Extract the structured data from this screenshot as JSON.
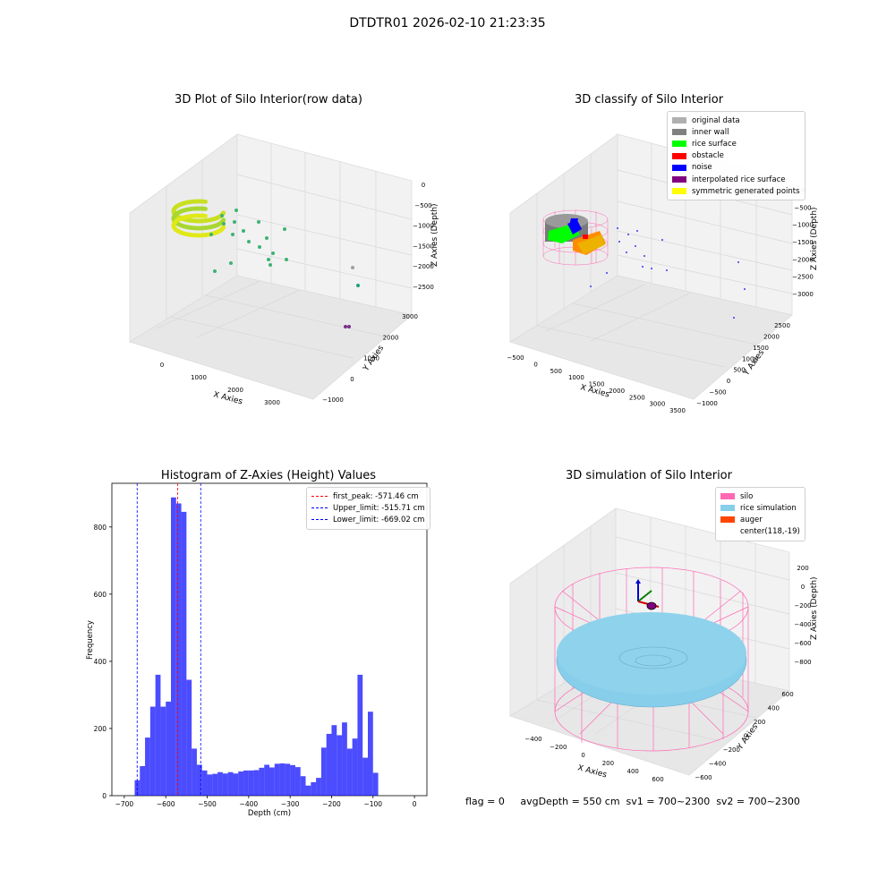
{
  "suptitle": "DTDTR01 2026-02-10 21:23:35",
  "panels": {
    "raw": {
      "title": "3D Plot of Silo Interior(row data)",
      "xlabel": "X Axies",
      "ylabel": "Y Axies",
      "zlabel": "Z Axies (Depth)",
      "xticks": [
        "0",
        "1000",
        "2000",
        "3000"
      ],
      "yticks": [
        "-1000",
        "0",
        "1000",
        "2000",
        "3000"
      ],
      "zticks": [
        "0",
        "-500",
        "-1000",
        "-1500",
        "-2000",
        "-2500"
      ]
    },
    "classify": {
      "title": "3D classify of Silo Interior",
      "xlabel": "X Axies",
      "ylabel": "Y Axies",
      "zlabel": "Z Axies (Depth)",
      "xticks": [
        "-500",
        "0",
        "500",
        "1000",
        "1500",
        "2000",
        "2500",
        "3000",
        "3500"
      ],
      "yticks": [
        "-1000",
        "-500",
        "0",
        "500",
        "1000",
        "1500",
        "2000",
        "2500"
      ],
      "zticks": [
        "0",
        "-500",
        "-1000",
        "-1500",
        "-2000",
        "-2500",
        "-3000"
      ],
      "legend": [
        {
          "label": "original data",
          "color": "#b0b0b0"
        },
        {
          "label": "inner wall",
          "color": "#808080"
        },
        {
          "label": "rice surface",
          "color": "#00ff00"
        },
        {
          "label": "obstacle",
          "color": "#ff0000"
        },
        {
          "label": "noise",
          "color": "#0000ff"
        },
        {
          "label": "interpolated rice surface",
          "color": "#800080"
        },
        {
          "label": "symmetric generated points",
          "color": "#ffff00"
        }
      ]
    },
    "simulation": {
      "title": "3D simulation of Silo Interior",
      "xlabel": "X Axies",
      "ylabel": "Y Axies",
      "zlabel": "Z Axies (Depth)",
      "xticks": [
        "-400",
        "-200",
        "0",
        "200",
        "400",
        "600"
      ],
      "yticks": [
        "-600",
        "-400",
        "-200",
        "0",
        "200",
        "400",
        "600"
      ],
      "zticks": [
        "200",
        "0",
        "-200",
        "-400",
        "-600",
        "-800"
      ],
      "legend": [
        {
          "label": "silo",
          "color": "#ff69b4"
        },
        {
          "label": "rice simulation",
          "color": "#87ceeb"
        },
        {
          "label": "auger",
          "color": "#ff4500"
        },
        {
          "label": "center(118,-19)",
          "color": ""
        }
      ]
    }
  },
  "footer": "flag = 0     avgDepth = 550 cm  sv1 = 700~2300  sv2 = 700~2300",
  "chart_data": {
    "type": "bar",
    "title": "Histogram of Z-Axies (Height) Values",
    "xlabel": "Depth (cm)",
    "ylabel": "Frequency",
    "xlim": [
      -730,
      30
    ],
    "ylim": [
      0,
      930
    ],
    "xticks": [
      -700,
      -600,
      -500,
      -400,
      -300,
      -200,
      -100,
      0
    ],
    "yticks": [
      0,
      200,
      400,
      600,
      800
    ],
    "bin_start": -675,
    "bin_width": 12.5,
    "color": "#0000ff",
    "values": [
      46,
      88,
      173,
      265,
      360,
      265,
      280,
      888,
      870,
      845,
      345,
      140,
      92,
      75,
      63,
      65,
      70,
      66,
      70,
      66,
      72,
      75,
      75,
      76,
      83,
      92,
      84,
      95,
      96,
      95,
      91,
      85,
      58,
      30,
      40,
      53,
      143,
      184,
      210,
      180,
      218,
      140,
      170,
      360,
      113,
      250,
      68
    ],
    "lines": [
      {
        "label": "first_peak: -571.46 cm",
        "x": -571.46,
        "color": "#ff0000"
      },
      {
        "label": "Upper_limit: -515.71 cm",
        "x": -515.71,
        "color": "#0000ff"
      },
      {
        "label": "Lower_limit: -669.02 cm",
        "x": -669.02,
        "color": "#0000ff"
      }
    ],
    "legend_position": "upper-right"
  }
}
